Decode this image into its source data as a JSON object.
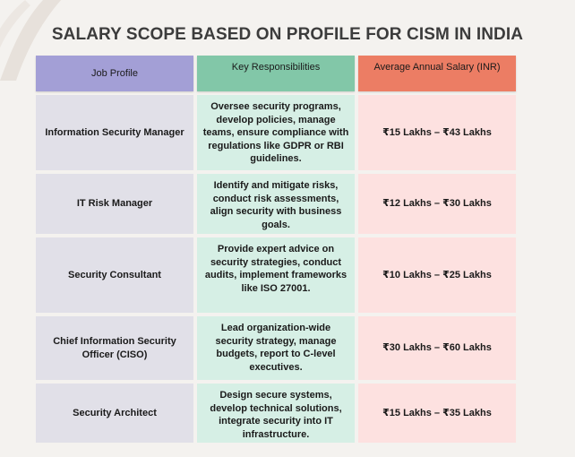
{
  "title": "SALARY SCOPE BASED ON PROFILE FOR CISM IN INDIA",
  "colors": {
    "background": "#f4f2ef",
    "header_profile": "#a39fd6",
    "header_responsibilities": "#82c7a8",
    "header_salary": "#ec7d64",
    "cell_profile": "#e1e0e8",
    "cell_responsibilities": "#d6efe5",
    "cell_salary": "#fde1e0"
  },
  "table": {
    "headers": [
      "Job Profile",
      "Key Responsibilities",
      "Average Annual Salary (INR)"
    ],
    "rows": [
      {
        "profile": "Information Security Manager",
        "responsibilities": "Oversee security programs, develop policies, manage teams, ensure compliance with regulations like GDPR or RBI guidelines.",
        "salary": "₹15 Lakhs – ₹43 Lakhs"
      },
      {
        "profile": "IT Risk Manager",
        "responsibilities": "Identify and mitigate risks, conduct risk assessments, align security with business goals.",
        "salary": "₹12 Lakhs – ₹30 Lakhs"
      },
      {
        "profile": "Security Consultant",
        "responsibilities": "Provide expert advice on security strategies, conduct audits, implement frameworks like ISO 27001.",
        "salary": "₹10 Lakhs – ₹25 Lakhs"
      },
      {
        "profile": "Chief Information Security Officer (CISO)",
        "responsibilities": "Lead organization-wide security strategy, manage budgets, report to C-level executives.",
        "salary": "₹30 Lakhs – ₹60 Lakhs"
      },
      {
        "profile": "Security Architect",
        "responsibilities": "Design secure systems, develop technical solutions, integrate security into IT infrastructure.",
        "salary": "₹15 Lakhs – ₹35 Lakhs"
      }
    ]
  }
}
